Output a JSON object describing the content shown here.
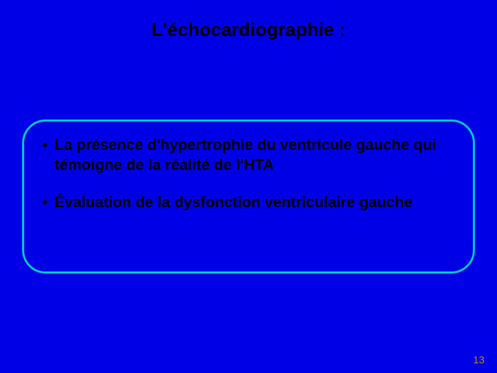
{
  "slide": {
    "background_color": "#0000e6",
    "title": "L'échocardiographie :",
    "title_color": "#000000",
    "content_box": {
      "background_color": "#0000e6",
      "border_color": "#00cccc",
      "text_color": "#000000",
      "bullets": [
        "La présence d'hypertrophie du ventricule gauche qui témoigne de la réalité de l'HTA",
        "Évaluation de la dysfonction ventriculaire gauche"
      ]
    },
    "page_number": "13",
    "page_number_color": "#b8860b"
  }
}
